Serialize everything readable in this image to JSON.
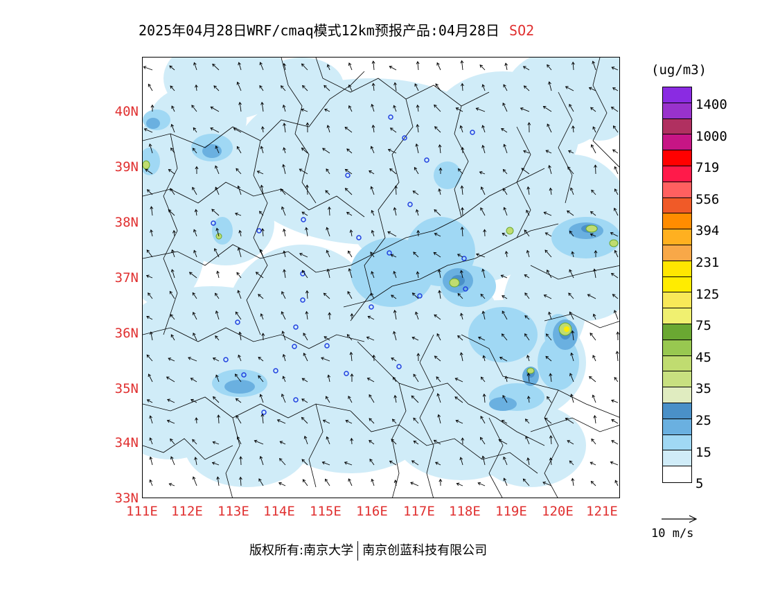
{
  "title": {
    "text": "2025年04月28日WRF/cmaq模式12km预报产品:04月28日",
    "product": "SO2"
  },
  "map": {
    "lat_labels": [
      "40N",
      "39N",
      "38N",
      "37N",
      "36N",
      "35N",
      "34N",
      "33N"
    ],
    "lon_labels": [
      "111E",
      "112E",
      "113E",
      "114E",
      "115E",
      "116E",
      "117E",
      "118E",
      "119E",
      "120E",
      "121E"
    ],
    "lat_range": [
      33,
      41
    ],
    "lon_range": [
      111,
      121.4
    ]
  },
  "legend": {
    "unit": "(ug/m3)",
    "levels": [
      "1400",
      "1000",
      "719",
      "556",
      "394",
      "231",
      "125",
      "75",
      "45",
      "35",
      "25",
      "15",
      "5"
    ],
    "colors": [
      "#8a2be2",
      "#9932cc",
      "#b03060",
      "#c71585",
      "#ff0000",
      "#ff1a4a",
      "#ff6060",
      "#f05a28",
      "#ff8c00",
      "#ffb020",
      "#f8a848",
      "#ffe600",
      "#ffec00",
      "#f8e858",
      "#f0f070",
      "#6aa832",
      "#98c850",
      "#c0dc70",
      "#c8e080",
      "#e0ecc0",
      "#4a90c8",
      "#6ab0e0",
      "#a0d8f4",
      "#d0ecf8",
      "#ffffff"
    ],
    "vector_reference": "10 m/s"
  },
  "footer": {
    "copyright": "版权所有:南京大学",
    "company": "南京创蓝科技有限公司"
  }
}
